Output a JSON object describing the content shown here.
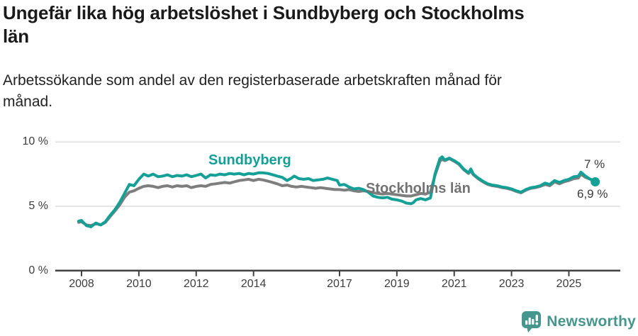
{
  "header": {
    "title": "Ungefär lika hög arbetslöshet i Sundbyberg och Stockholms län",
    "title_lines": [
      "Ungefär lika hög arbetslöshet i Sundbyberg och Stockholms",
      "län"
    ],
    "subtitle": "Arbetssökande som andel av den registerbaserade arbetskraften månad för månad.",
    "subtitle_lines": [
      "Arbetssökande som andel av den registerbaserade arbetskraften månad för",
      "månad."
    ]
  },
  "footer": {
    "brand": "Newsworthy",
    "logo_icon": "speech-bubble-bar-chart-icon"
  },
  "colors": {
    "accent_teal": "#14a096",
    "line_gray": "#7e7e7e",
    "axis": "#404040",
    "grid": "#dcdcdc",
    "brand_teal": "#46968e",
    "text": "#1a1a1a"
  },
  "chart_data": {
    "type": "line",
    "title": "Ungefär lika hög arbetslöshet i Sundbyberg och Stockholms län",
    "subtitle": "Arbetssökande som andel av den registerbaserade arbetskraften månad för månad.",
    "unit": "%",
    "x_range": [
      2007.9,
      2026.6
    ],
    "y_range": [
      0,
      10
    ],
    "grid": "horizontal-only",
    "legend_position": "inline-labels",
    "y_ticks": [
      {
        "v": 0,
        "label": "0 %"
      },
      {
        "v": 5,
        "label": "5 %"
      },
      {
        "v": 10,
        "label": "10 %"
      }
    ],
    "x_ticks": [
      {
        "t": 2008,
        "label": "2008"
      },
      {
        "t": 2010,
        "label": "2010"
      },
      {
        "t": 2012,
        "label": "2012"
      },
      {
        "t": 2014,
        "label": "2014"
      },
      {
        "t": 2017,
        "label": "2017"
      },
      {
        "t": 2019,
        "label": "2019"
      },
      {
        "t": 2021,
        "label": "2021"
      },
      {
        "t": 2023,
        "label": "2023"
      },
      {
        "t": 2025,
        "label": "2025"
      }
    ],
    "series": [
      {
        "name": "Sundbyberg",
        "color": "#14a096",
        "end_label": "6,9 %",
        "end_value": 6.9,
        "end_dot": true,
        "points": [
          [
            2007.9,
            3.85
          ],
          [
            2008.0,
            3.9
          ],
          [
            2008.17,
            3.5
          ],
          [
            2008.33,
            3.4
          ],
          [
            2008.5,
            3.7
          ],
          [
            2008.67,
            3.55
          ],
          [
            2008.83,
            3.8
          ],
          [
            2009.0,
            4.3
          ],
          [
            2009.17,
            4.75
          ],
          [
            2009.33,
            5.3
          ],
          [
            2009.5,
            6.0
          ],
          [
            2009.67,
            6.7
          ],
          [
            2009.83,
            6.6
          ],
          [
            2010.0,
            7.1
          ],
          [
            2010.17,
            7.5
          ],
          [
            2010.33,
            7.35
          ],
          [
            2010.5,
            7.5
          ],
          [
            2010.67,
            7.3
          ],
          [
            2010.83,
            7.35
          ],
          [
            2011.0,
            7.45
          ],
          [
            2011.17,
            7.3
          ],
          [
            2011.33,
            7.4
          ],
          [
            2011.5,
            7.35
          ],
          [
            2011.67,
            7.45
          ],
          [
            2011.83,
            7.3
          ],
          [
            2012.0,
            7.4
          ],
          [
            2012.17,
            7.5
          ],
          [
            2012.33,
            7.2
          ],
          [
            2012.5,
            7.45
          ],
          [
            2012.67,
            7.4
          ],
          [
            2012.83,
            7.5
          ],
          [
            2013.0,
            7.45
          ],
          [
            2013.17,
            7.55
          ],
          [
            2013.33,
            7.5
          ],
          [
            2013.5,
            7.55
          ],
          [
            2013.67,
            7.45
          ],
          [
            2013.83,
            7.55
          ],
          [
            2014.0,
            7.5
          ],
          [
            2014.17,
            7.6
          ],
          [
            2014.33,
            7.6
          ],
          [
            2014.5,
            7.55
          ],
          [
            2014.67,
            7.45
          ],
          [
            2014.83,
            7.35
          ],
          [
            2015.0,
            7.25
          ],
          [
            2015.17,
            7.0
          ],
          [
            2015.33,
            7.2
          ],
          [
            2015.42,
            7.35
          ],
          [
            2015.58,
            7.15
          ],
          [
            2015.75,
            7.1
          ],
          [
            2015.92,
            7.15
          ],
          [
            2016.08,
            7.0
          ],
          [
            2016.25,
            7.05
          ],
          [
            2016.42,
            7.1
          ],
          [
            2016.58,
            7.2
          ],
          [
            2016.75,
            7.1
          ],
          [
            2016.92,
            7.0
          ],
          [
            2017.0,
            6.65
          ],
          [
            2017.17,
            6.7
          ],
          [
            2017.33,
            6.5
          ],
          [
            2017.5,
            6.35
          ],
          [
            2017.67,
            6.4
          ],
          [
            2017.83,
            6.3
          ],
          [
            2018.0,
            6.1
          ],
          [
            2018.17,
            5.8
          ],
          [
            2018.33,
            5.7
          ],
          [
            2018.5,
            5.65
          ],
          [
            2018.67,
            5.7
          ],
          [
            2018.83,
            5.55
          ],
          [
            2019.0,
            5.5
          ],
          [
            2019.17,
            5.4
          ],
          [
            2019.33,
            5.25
          ],
          [
            2019.5,
            5.2
          ],
          [
            2019.58,
            5.3
          ],
          [
            2019.67,
            5.5
          ],
          [
            2019.83,
            5.6
          ],
          [
            2020.0,
            5.5
          ],
          [
            2020.17,
            5.65
          ],
          [
            2020.33,
            7.5
          ],
          [
            2020.5,
            8.7
          ],
          [
            2020.58,
            8.85
          ],
          [
            2020.67,
            8.6
          ],
          [
            2020.83,
            8.75
          ],
          [
            2021.0,
            8.55
          ],
          [
            2021.17,
            8.3
          ],
          [
            2021.33,
            7.9
          ],
          [
            2021.5,
            7.6
          ],
          [
            2021.58,
            7.9
          ],
          [
            2021.67,
            7.5
          ],
          [
            2021.83,
            7.2
          ],
          [
            2022.0,
            6.95
          ],
          [
            2022.17,
            6.75
          ],
          [
            2022.33,
            6.65
          ],
          [
            2022.5,
            6.6
          ],
          [
            2022.67,
            6.5
          ],
          [
            2022.83,
            6.45
          ],
          [
            2023.0,
            6.35
          ],
          [
            2023.17,
            6.2
          ],
          [
            2023.33,
            6.1
          ],
          [
            2023.5,
            6.3
          ],
          [
            2023.67,
            6.45
          ],
          [
            2023.83,
            6.5
          ],
          [
            2024.0,
            6.6
          ],
          [
            2024.17,
            6.8
          ],
          [
            2024.33,
            6.7
          ],
          [
            2024.5,
            7.0
          ],
          [
            2024.67,
            6.85
          ],
          [
            2024.83,
            7.0
          ],
          [
            2025.0,
            7.1
          ],
          [
            2025.17,
            7.3
          ],
          [
            2025.33,
            7.35
          ],
          [
            2025.42,
            7.65
          ],
          [
            2025.58,
            7.35
          ],
          [
            2025.75,
            7.1
          ],
          [
            2025.92,
            6.9
          ]
        ]
      },
      {
        "name": "Stockholms län",
        "color": "#7e7e7e",
        "end_label": "7 %",
        "end_value": 7.0,
        "end_dot": false,
        "points": [
          [
            2007.9,
            3.75
          ],
          [
            2008.0,
            3.8
          ],
          [
            2008.17,
            3.55
          ],
          [
            2008.33,
            3.5
          ],
          [
            2008.5,
            3.65
          ],
          [
            2008.67,
            3.55
          ],
          [
            2008.83,
            3.75
          ],
          [
            2009.0,
            4.2
          ],
          [
            2009.17,
            4.65
          ],
          [
            2009.33,
            5.1
          ],
          [
            2009.5,
            5.7
          ],
          [
            2009.67,
            6.1
          ],
          [
            2009.83,
            6.2
          ],
          [
            2010.0,
            6.4
          ],
          [
            2010.17,
            6.55
          ],
          [
            2010.33,
            6.6
          ],
          [
            2010.5,
            6.55
          ],
          [
            2010.67,
            6.45
          ],
          [
            2010.83,
            6.55
          ],
          [
            2011.0,
            6.6
          ],
          [
            2011.17,
            6.5
          ],
          [
            2011.33,
            6.6
          ],
          [
            2011.5,
            6.55
          ],
          [
            2011.67,
            6.6
          ],
          [
            2011.83,
            6.45
          ],
          [
            2012.0,
            6.55
          ],
          [
            2012.17,
            6.6
          ],
          [
            2012.33,
            6.55
          ],
          [
            2012.5,
            6.7
          ],
          [
            2012.67,
            6.75
          ],
          [
            2012.83,
            6.8
          ],
          [
            2013.0,
            6.85
          ],
          [
            2013.17,
            6.8
          ],
          [
            2013.33,
            6.9
          ],
          [
            2013.5,
            7.0
          ],
          [
            2013.67,
            7.05
          ],
          [
            2013.83,
            7.1
          ],
          [
            2014.0,
            7.0
          ],
          [
            2014.17,
            7.1
          ],
          [
            2014.33,
            7.05
          ],
          [
            2014.5,
            6.95
          ],
          [
            2014.67,
            6.85
          ],
          [
            2014.83,
            6.75
          ],
          [
            2015.0,
            6.6
          ],
          [
            2015.17,
            6.65
          ],
          [
            2015.33,
            6.55
          ],
          [
            2015.5,
            6.5
          ],
          [
            2015.67,
            6.55
          ],
          [
            2015.83,
            6.5
          ],
          [
            2016.0,
            6.45
          ],
          [
            2016.17,
            6.4
          ],
          [
            2016.33,
            6.45
          ],
          [
            2016.5,
            6.4
          ],
          [
            2016.67,
            6.35
          ],
          [
            2016.83,
            6.3
          ],
          [
            2017.0,
            6.3
          ],
          [
            2017.17,
            6.25
          ],
          [
            2017.33,
            6.3
          ],
          [
            2017.5,
            6.2
          ],
          [
            2017.67,
            6.15
          ],
          [
            2017.83,
            6.2
          ],
          [
            2018.0,
            6.15
          ],
          [
            2018.17,
            6.05
          ],
          [
            2018.33,
            6.0
          ],
          [
            2018.5,
            5.95
          ],
          [
            2018.67,
            6.0
          ],
          [
            2018.83,
            5.95
          ],
          [
            2019.0,
            5.9
          ],
          [
            2019.17,
            5.85
          ],
          [
            2019.33,
            5.8
          ],
          [
            2019.5,
            5.8
          ],
          [
            2019.58,
            5.85
          ],
          [
            2019.67,
            5.9
          ],
          [
            2019.83,
            6.0
          ],
          [
            2020.0,
            5.95
          ],
          [
            2020.17,
            6.1
          ],
          [
            2020.33,
            7.4
          ],
          [
            2020.5,
            8.5
          ],
          [
            2020.58,
            8.65
          ],
          [
            2020.67,
            8.55
          ],
          [
            2020.83,
            8.7
          ],
          [
            2021.0,
            8.5
          ],
          [
            2021.17,
            8.25
          ],
          [
            2021.33,
            7.85
          ],
          [
            2021.5,
            7.55
          ],
          [
            2021.58,
            7.75
          ],
          [
            2021.67,
            7.45
          ],
          [
            2021.83,
            7.15
          ],
          [
            2022.0,
            6.9
          ],
          [
            2022.17,
            6.7
          ],
          [
            2022.33,
            6.6
          ],
          [
            2022.5,
            6.55
          ],
          [
            2022.67,
            6.45
          ],
          [
            2022.83,
            6.4
          ],
          [
            2023.0,
            6.3
          ],
          [
            2023.17,
            6.15
          ],
          [
            2023.33,
            6.05
          ],
          [
            2023.5,
            6.25
          ],
          [
            2023.67,
            6.4
          ],
          [
            2023.83,
            6.45
          ],
          [
            2024.0,
            6.55
          ],
          [
            2024.17,
            6.7
          ],
          [
            2024.33,
            6.6
          ],
          [
            2024.5,
            6.9
          ],
          [
            2024.67,
            6.75
          ],
          [
            2024.83,
            6.9
          ],
          [
            2025.0,
            7.0
          ],
          [
            2025.17,
            7.15
          ],
          [
            2025.33,
            7.2
          ],
          [
            2025.42,
            7.5
          ],
          [
            2025.58,
            7.25
          ],
          [
            2025.75,
            7.1
          ],
          [
            2025.92,
            7.0
          ]
        ]
      }
    ]
  }
}
